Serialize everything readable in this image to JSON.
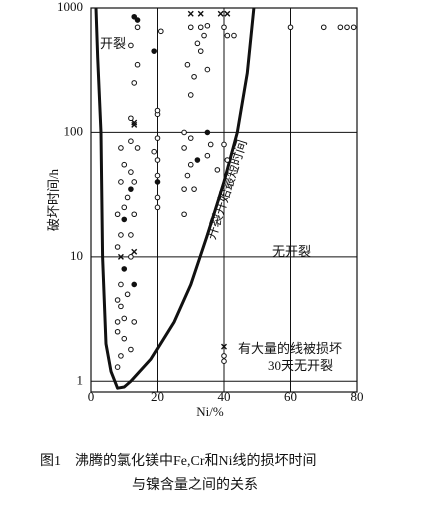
{
  "chart_data": {
    "type": "scatter",
    "ylabel": "破坏时间/h",
    "xlabel": "Ni/%",
    "caption_line1": "图1　沸腾的氯化镁中Fe,Cr和Ni线的损坏时间",
    "caption_line2": "与镍含量之间的关系",
    "annotations": [
      "开裂",
      "无开裂",
      "开裂开始最短时间",
      "有大量的线被损坏",
      "30天无开裂"
    ],
    "xlim": [
      0,
      80
    ],
    "ylim": [
      0.82,
      1000
    ],
    "log_y": true,
    "grid": true,
    "xticks": [
      0,
      20,
      40,
      60,
      80
    ],
    "yticks": [
      1,
      10,
      100,
      1000
    ],
    "curve": {
      "x": [
        1.5,
        2,
        3,
        3.5,
        4.5,
        6,
        8,
        10,
        12,
        18,
        25,
        30,
        35,
        40,
        44,
        47,
        49
      ],
      "y": [
        1000,
        400,
        100,
        10,
        2,
        1.2,
        0.88,
        0.9,
        1.0,
        1.5,
        3,
        6,
        15,
        40,
        100,
        300,
        1000
      ]
    },
    "points": {
      "x": [
        8,
        9,
        8,
        10,
        8,
        10,
        9,
        8,
        11,
        9,
        10,
        9,
        8,
        9,
        10,
        8,
        10,
        11,
        9,
        10,
        9,
        12,
        13,
        13,
        12,
        13,
        12,
        13,
        12,
        13,
        12,
        14,
        12,
        13,
        13,
        12,
        13,
        14,
        12,
        14,
        13,
        14,
        20,
        20,
        20,
        20,
        20,
        19,
        20,
        20,
        19,
        21,
        20,
        28,
        28,
        29,
        30,
        28,
        30,
        28,
        30,
        31,
        29,
        33,
        32,
        34,
        35,
        36,
        35,
        32,
        31,
        35,
        38,
        30,
        33,
        35,
        40,
        41,
        41,
        39,
        40,
        41,
        43,
        40,
        40,
        40,
        60,
        70,
        75,
        77,
        79,
        33,
        30
      ],
      "y": [
        1.3,
        1.6,
        2.5,
        2.2,
        3,
        3.2,
        4,
        4.5,
        5,
        6,
        8,
        10,
        12,
        15,
        20,
        22,
        25,
        30,
        40,
        55,
        75,
        1.8,
        3,
        6,
        10,
        11,
        15,
        22,
        35,
        40,
        48,
        75,
        85,
        120,
        115,
        130,
        250,
        350,
        500,
        800,
        850,
        700,
        25,
        30,
        40,
        45,
        60,
        70,
        90,
        140,
        450,
        650,
        150,
        22,
        35,
        45,
        55,
        75,
        90,
        100,
        200,
        280,
        350,
        450,
        520,
        600,
        320,
        80,
        65,
        60,
        35,
        100,
        50,
        700,
        700,
        720,
        700,
        600,
        900,
        900,
        80,
        60,
        600,
        1.9,
        1.6,
        1.45,
        700,
        700,
        700,
        700,
        700,
        900,
        900
      ],
      "marker": [
        "o",
        "o",
        "o",
        "o",
        "o",
        "o",
        "o",
        "o",
        "o",
        "o",
        "f",
        "x",
        "o",
        "o",
        "f",
        "o",
        "o",
        "o",
        "o",
        "o",
        "o",
        "o",
        "o",
        "f",
        "o",
        "x",
        "o",
        "o",
        "f",
        "o",
        "o",
        "o",
        "o",
        "x",
        "x",
        "o",
        "o",
        "o",
        "o",
        "f",
        "f",
        "o",
        "o",
        "o",
        "f",
        "o",
        "o",
        "o",
        "o",
        "o",
        "f",
        "o",
        "o",
        "o",
        "o",
        "o",
        "o",
        "o",
        "o",
        "o",
        "o",
        "o",
        "o",
        "o",
        "o",
        "o",
        "o",
        "o",
        "o",
        "f",
        "o",
        "f",
        "o",
        "o",
        "o",
        "o",
        "o",
        "o",
        "x",
        "x",
        "o",
        "o",
        "o",
        "x",
        "o",
        "o",
        "o",
        "o",
        "o",
        "o",
        "o",
        "x",
        "x"
      ]
    }
  }
}
